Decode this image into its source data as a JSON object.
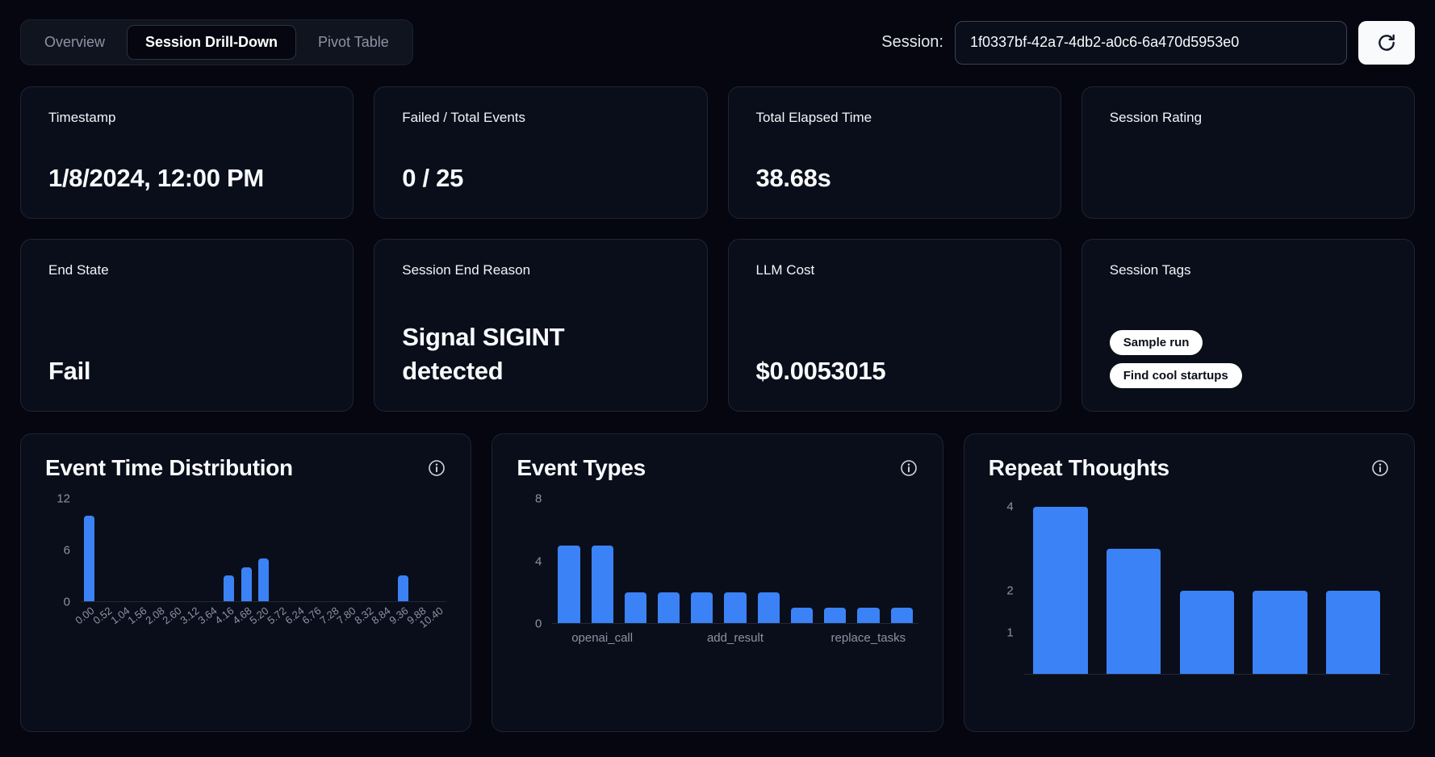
{
  "header": {
    "tabs": [
      {
        "label": "Overview",
        "active": false
      },
      {
        "label": "Session Drill-Down",
        "active": true
      },
      {
        "label": "Pivot Table",
        "active": false
      }
    ],
    "session_label": "Session:",
    "session_id": "1f0337bf-42a7-4db2-a0c6-6a470d5953e0"
  },
  "icons": {
    "refresh": "refresh-icon",
    "info": "info-icon"
  },
  "colors": {
    "accent": "#3b82f6",
    "background": "#05060f",
    "card": "#0a0e1a",
    "border": "#1d2535",
    "muted_text": "#8b93a5",
    "tag_bg": "#ffffff",
    "tag_text": "#0b0f19"
  },
  "stat_cards": [
    {
      "label": "Timestamp",
      "value": "1/8/2024, 12:00 PM"
    },
    {
      "label": "Failed / Total Events",
      "value": "0 / 25"
    },
    {
      "label": "Total Elapsed Time",
      "value": "38.68s"
    },
    {
      "label": "Session Rating",
      "value": ""
    },
    {
      "label": "End State",
      "value": "Fail"
    },
    {
      "label": "Session End Reason",
      "value": "Signal SIGINT detected"
    },
    {
      "label": "LLM Cost",
      "value": "$0.0053015"
    },
    {
      "label": "Session Tags",
      "tags": [
        "Sample run",
        "Find cool startups"
      ]
    }
  ],
  "chart_data": [
    {
      "type": "bar",
      "title": "Event Time Distribution",
      "categories": [
        "0.00",
        "0.52",
        "1.04",
        "1.56",
        "2.08",
        "2.60",
        "3.12",
        "3.64",
        "4.16",
        "4.68",
        "5.20",
        "5.72",
        "6.24",
        "6.76",
        "7.28",
        "7.80",
        "8.32",
        "8.84",
        "9.36",
        "9.88",
        "10.40"
      ],
      "values": [
        10,
        0,
        0,
        0,
        0,
        0,
        0,
        0,
        3,
        4,
        5,
        0,
        0,
        0,
        0,
        0,
        0,
        0,
        3,
        0,
        0
      ],
      "xlabel": "",
      "ylabel": "",
      "ylim": [
        0,
        12
      ],
      "yticks": [
        0,
        6,
        12
      ],
      "legend": "none",
      "grid": false
    },
    {
      "type": "bar",
      "title": "Event Types",
      "categories": [
        "",
        "openai_call",
        "",
        "",
        "",
        "add_result",
        "",
        "",
        "",
        "replace_tasks",
        ""
      ],
      "values": [
        5,
        5,
        2,
        2,
        2,
        2,
        2,
        1,
        1,
        1,
        1
      ],
      "xlabel": "",
      "ylabel": "",
      "ylim": [
        0,
        8
      ],
      "yticks": [
        0,
        4,
        8
      ],
      "legend": "none",
      "grid": false
    },
    {
      "type": "bar",
      "title": "Repeat Thoughts",
      "categories": [
        "",
        "",
        "",
        "",
        ""
      ],
      "values": [
        4,
        3,
        2,
        2,
        2
      ],
      "xlabel": "",
      "ylabel": "",
      "ylim": [
        0,
        4.2
      ],
      "yticks": [
        1,
        2,
        4
      ],
      "legend": "none",
      "grid": false
    }
  ]
}
